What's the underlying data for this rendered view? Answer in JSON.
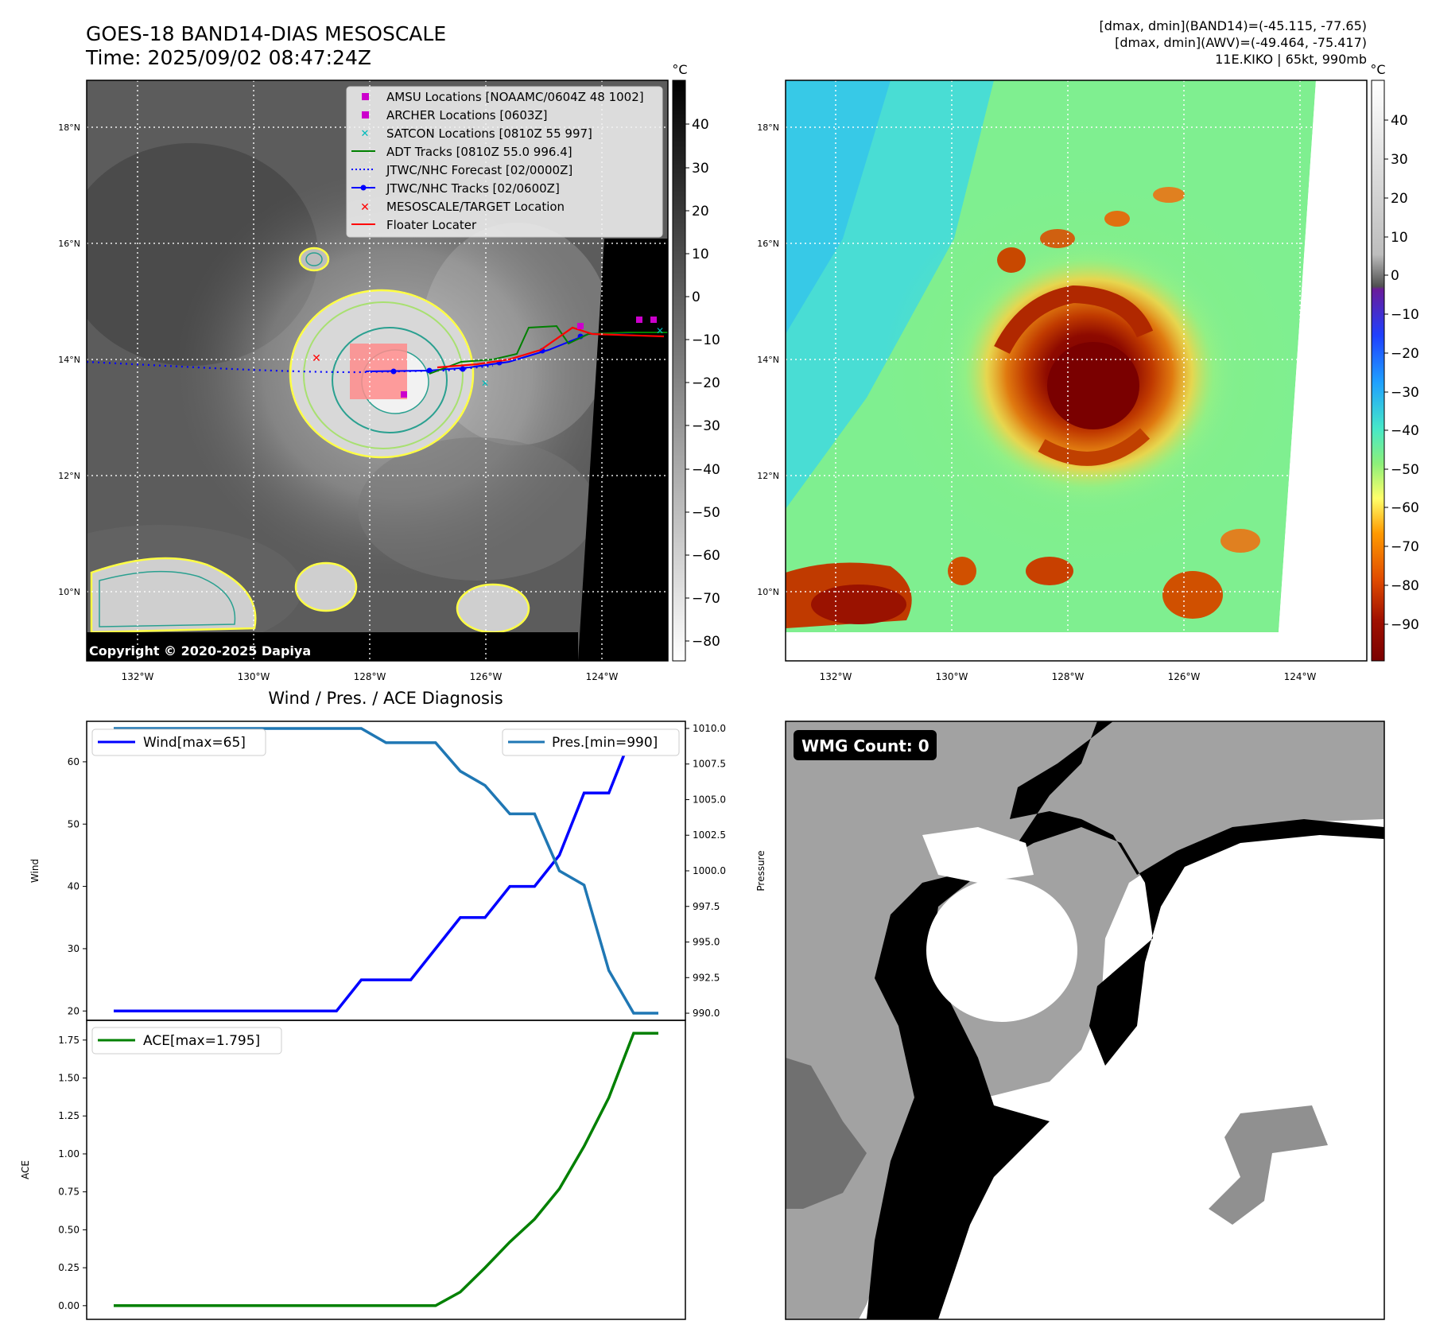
{
  "header": {
    "title": "GOES-18 BAND14-DIAS MESOSCALE",
    "time": "Time: 2025/09/02 08:47:24Z",
    "stat1": "[dmax, dmin](BAND14)=(-45.115, -77.65)",
    "stat2": "[dmax, dmin](AWV)=(-49.464, -75.417)",
    "storm": "11E.KIKO | 65kt, 990mb"
  },
  "map": {
    "lon_ticks": [
      "132°W",
      "130°W",
      "128°W",
      "126°W",
      "124°W"
    ],
    "lat_ticks": [
      "18°N",
      "16°N",
      "14°N",
      "12°N",
      "10°N"
    ],
    "copyright": "Copyright © 2020-2025 Dapiya",
    "legend": [
      "AMSU Locations [NOAAMC/0604Z 48 1002]",
      "ARCHER Locations [0603Z]",
      "SATCON Locations [0810Z 55 997]",
      "ADT Tracks [0810Z 55.0 996.4]",
      "JTWC/NHC Forecast [02/0000Z]",
      "JTWC/NHC Tracks [02/0600Z]",
      "MESOSCALE/TARGET Location",
      "Floater Locater"
    ],
    "colors": {
      "amsu": "#cc00cc",
      "archer": "#cc00cc",
      "satcon": "#00bbbb",
      "adt": "#008000",
      "forecast": "#0000ff",
      "tracks": "#0000ff",
      "target": "#ff0000",
      "floater": "#ff0000"
    }
  },
  "colorbar1": {
    "unit": "°C",
    "ticks": [
      "40",
      "30",
      "20",
      "10",
      "0",
      "−10",
      "−20",
      "−30",
      "−40",
      "−50",
      "−60",
      "−70",
      "−80"
    ]
  },
  "colorbar2": {
    "unit": "°C",
    "ticks": [
      "40",
      "30",
      "20",
      "10",
      "0",
      "−10",
      "−20",
      "−30",
      "−40",
      "−50",
      "−60",
      "−70",
      "−80",
      "−90"
    ]
  },
  "wmg": {
    "label": "WMG Count: 0"
  },
  "chart_data": [
    {
      "type": "line",
      "title": "Wind / Pres. / ACE Diagnosis",
      "ylabel": "Wind",
      "ylabel_right": "Pressure",
      "ylim": [
        18.5,
        66.5
      ],
      "ylim_right": [
        989.5,
        1010.5
      ],
      "yticks": [
        20,
        30,
        40,
        50,
        60
      ],
      "yticks_right": [
        "990.0",
        "992.5",
        "995.0",
        "997.5",
        "1000.0",
        "1002.5",
        "1005.0",
        "1007.5",
        "1010.0"
      ],
      "x": [
        0,
        1,
        2,
        3,
        4,
        5,
        6,
        7,
        8,
        9,
        10,
        11,
        12,
        13,
        14,
        15,
        16,
        17,
        18,
        19,
        20,
        21,
        22
      ],
      "series": [
        {
          "name": "Wind[max=65]",
          "color": "#0000ff",
          "values": [
            20,
            20,
            20,
            20,
            20,
            20,
            20,
            20,
            20,
            20,
            25,
            25,
            25,
            30,
            35,
            35,
            40,
            40,
            45,
            55,
            55,
            65,
            65
          ]
        },
        {
          "name": "Pres.[min=990]",
          "color": "#1f77b4",
          "values": [
            1010,
            1010,
            1010,
            1010,
            1010,
            1010,
            1010,
            1010,
            1010,
            1010,
            1010,
            1009,
            1009,
            1009,
            1007,
            1006,
            1004,
            1004,
            1000,
            999,
            993,
            990,
            990
          ]
        }
      ]
    },
    {
      "type": "line",
      "ylabel": "ACE",
      "ylim": [
        -0.09,
        1.88
      ],
      "yticks": [
        "0.00",
        "0.25",
        "0.50",
        "0.75",
        "1.00",
        "1.25",
        "1.50",
        "1.75"
      ],
      "x": [
        0,
        1,
        2,
        3,
        4,
        5,
        6,
        7,
        8,
        9,
        10,
        11,
        12,
        13,
        14,
        15,
        16,
        17,
        18,
        19,
        20,
        21,
        22
      ],
      "series": [
        {
          "name": "ACE[max=1.795]",
          "color": "#008000",
          "values": [
            0,
            0,
            0,
            0,
            0,
            0,
            0,
            0,
            0,
            0,
            0,
            0,
            0,
            0,
            0.09,
            0.25,
            0.42,
            0.57,
            0.77,
            1.05,
            1.37,
            1.795,
            1.795
          ]
        }
      ]
    }
  ]
}
